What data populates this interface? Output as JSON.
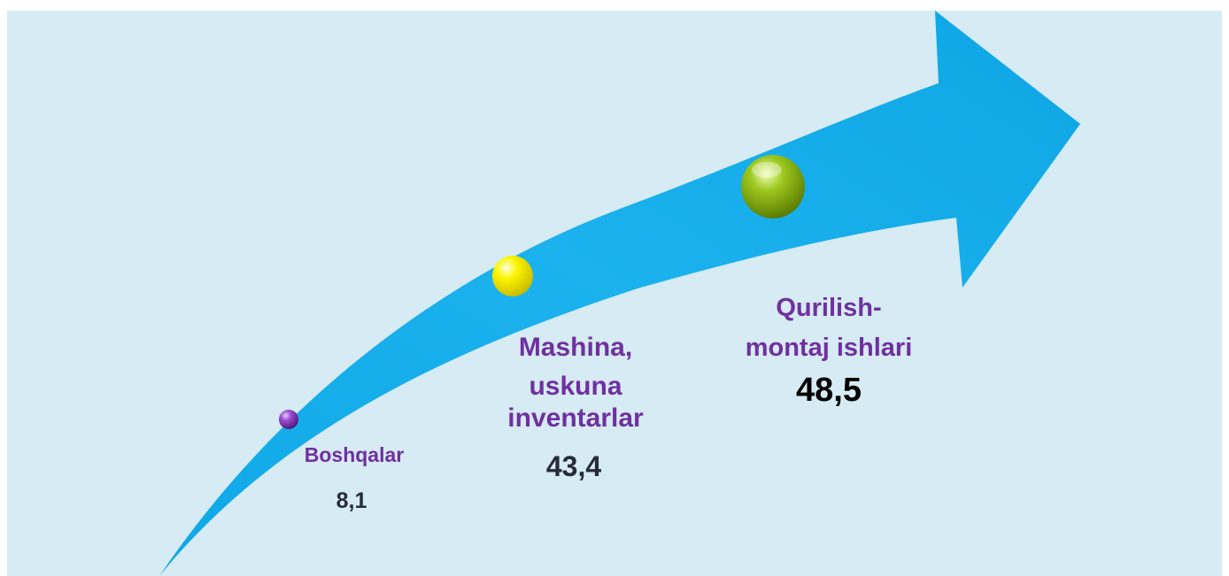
{
  "diagram": {
    "items": [
      {
        "lines": [
          "Boshqalar"
        ],
        "value": "8,1",
        "ball_color": "#7b2fb0"
      },
      {
        "lines": [
          "Mashina,",
          "uskuna",
          "inventarlar"
        ],
        "value": "43,4",
        "ball_color": "#f4f000"
      },
      {
        "lines": [
          "Qurilish-",
          "montaj ishlari"
        ],
        "value": "48,5",
        "ball_color": "#8db81c"
      }
    ],
    "colors": {
      "background": "#d6ebf3",
      "arrow": "#00b0f0",
      "category_text": "#7030a0",
      "value_text": "#262c3c",
      "highlight_value_text": "#000000"
    }
  }
}
